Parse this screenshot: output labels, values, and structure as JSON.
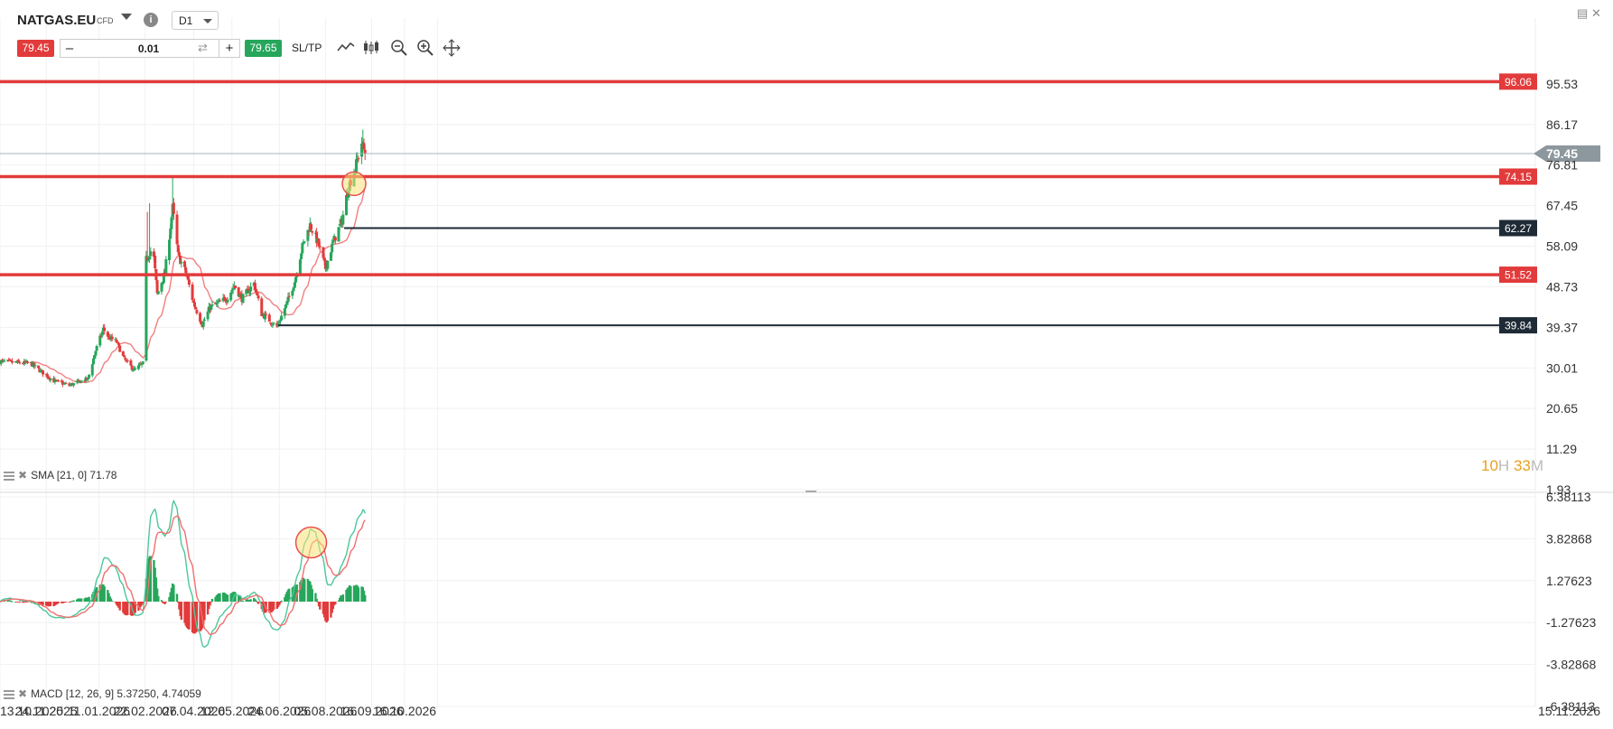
{
  "toolbar": {
    "symbol": "NATGAS.EU",
    "instrument_type": "CFD",
    "timeframe": "D1",
    "sell_price": "79.45",
    "volume": "0.01",
    "buy_price": "79.65",
    "sltp_label": "SL/TP",
    "minus": "–",
    "plus": "+",
    "info_glyph": "i",
    "tools": [
      "line-chart-icon",
      "candles-icon",
      "zoom-out-icon",
      "zoom-in-icon",
      "move-icon"
    ]
  },
  "window": {
    "minimize_icon": "window-icon",
    "close_glyph": "✕"
  },
  "colors": {
    "up": "#26a65b",
    "down": "#e23b3b",
    "sma": "#f08080",
    "macd_line": "#4cc79b",
    "signal_line": "#f07070",
    "level_red": "#e23b3b",
    "level_dark": "#1e2a35",
    "price_tag": "#8d979e"
  },
  "price_axis": {
    "ticks": [
      "95.53",
      "86.17",
      "76.81",
      "67.45",
      "58.09",
      "48.73",
      "39.37",
      "30.01",
      "20.65",
      "11.29",
      "1.93"
    ],
    "current_price": "79.45"
  },
  "macd_axis": {
    "ticks": [
      "6.38113",
      "3.82868",
      "1.27623",
      "-1.27623",
      "-3.82868",
      "-6.38113"
    ]
  },
  "time_axis": {
    "labels": [
      "13.10.2025",
      "24.11.2025",
      "11.01.2026",
      "22.02.2026",
      "07.04.2026",
      "12.05.2026",
      "24.06.2026",
      "05.08.2026",
      "16.09.2026",
      "16.10.2026",
      "15.11.2026"
    ]
  },
  "levels": [
    {
      "label": "96.06",
      "value": 96.06,
      "color": "red",
      "start_date": "2025-10-13"
    },
    {
      "label": "74.15",
      "value": 74.15,
      "color": "red",
      "start_date": "2025-10-13"
    },
    {
      "label": "62.27",
      "value": 62.27,
      "color": "dark",
      "start_date": "2026-08-22"
    },
    {
      "label": "51.52",
      "value": 51.52,
      "color": "red",
      "start_date": "2025-10-13"
    },
    {
      "label": "39.84",
      "value": 39.84,
      "color": "dark",
      "start_date": "2026-06-23"
    }
  ],
  "indicators": {
    "sma_label": "SMA [21, 0] 71.78",
    "macd_label": "MACD [12, 26, 9] 5.37250, 4.74059"
  },
  "countdown": {
    "hours": "10",
    "hours_unit": "H",
    "minutes": "33",
    "minutes_unit": "M"
  },
  "chart_data": {
    "type": "candlestick",
    "title": "NATGAS.EU",
    "timeframe": "D1",
    "x_range": [
      "2025-10-13",
      "2026-11-15"
    ],
    "ylim": [
      1.93,
      104.89
    ],
    "price_anchors": [
      [
        "2025-10-13",
        31.5
      ],
      [
        "2025-11-10",
        31.0
      ],
      [
        "2025-12-01",
        27.0
      ],
      [
        "2025-12-15",
        26.0
      ],
      [
        "2026-01-01",
        27.5
      ],
      [
        "2026-01-08",
        34.0
      ],
      [
        "2026-01-15",
        39.0
      ],
      [
        "2026-01-20",
        37.0
      ],
      [
        "2026-01-27",
        36.0
      ],
      [
        "2026-02-03",
        32.0
      ],
      [
        "2026-02-12",
        29.5
      ],
      [
        "2026-02-20",
        31.0
      ],
      [
        "2026-02-23",
        55.0
      ],
      [
        "2026-03-01",
        58.0
      ],
      [
        "2026-03-05",
        47.0
      ],
      [
        "2026-03-12",
        52.0
      ],
      [
        "2026-03-19",
        67.0
      ],
      [
        "2026-03-24",
        56.0
      ],
      [
        "2026-03-31",
        52.0
      ],
      [
        "2026-04-07",
        45.0
      ],
      [
        "2026-04-15",
        40.0
      ],
      [
        "2026-04-22",
        44.0
      ],
      [
        "2026-04-30",
        45.0
      ],
      [
        "2026-05-07",
        46.0
      ],
      [
        "2026-05-14",
        49.0
      ],
      [
        "2026-05-21",
        46.0
      ],
      [
        "2026-06-01",
        49.5
      ],
      [
        "2026-06-08",
        42.5
      ],
      [
        "2026-06-22",
        39.5
      ],
      [
        "2026-07-01",
        45.0
      ],
      [
        "2026-07-08",
        50.0
      ],
      [
        "2026-07-15",
        58.0
      ],
      [
        "2026-07-22",
        63.0
      ],
      [
        "2026-07-29",
        59.0
      ],
      [
        "2026-08-05",
        53.0
      ],
      [
        "2026-08-12",
        59.0
      ],
      [
        "2026-08-20",
        64.0
      ],
      [
        "2026-08-26",
        72.0
      ],
      [
        "2026-09-01",
        76.0
      ],
      [
        "2026-09-07",
        82.0
      ],
      [
        "2026-09-10",
        79.45
      ]
    ],
    "sma": {
      "period": 21,
      "last": 71.78
    },
    "macd": {
      "params": [
        12,
        26,
        9
      ],
      "macd": 5.3725,
      "signal": 4.74059,
      "ylim": [
        -6.38113,
        6.38113
      ]
    }
  }
}
